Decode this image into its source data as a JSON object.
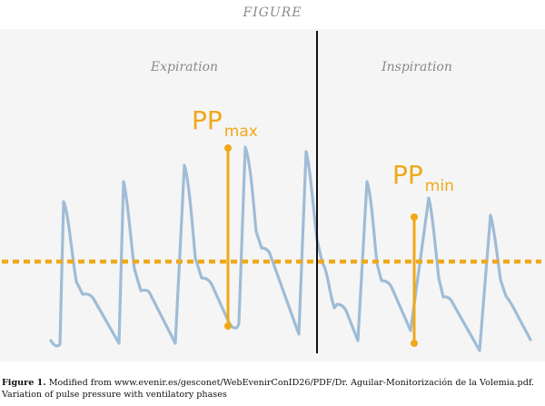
{
  "header": {
    "title": "FIGURE"
  },
  "phases": {
    "expiration": "Expiration",
    "inspiration": "Inspiration"
  },
  "annotations": {
    "pp_max": {
      "main": "PP",
      "sub": "max"
    },
    "pp_min": {
      "main": "PP",
      "sub": "min"
    }
  },
  "colors": {
    "waveform": "#9fbcd6",
    "annotation": "#f0a818",
    "divider": "#111111",
    "background": "#f5f5f5"
  },
  "caption": {
    "label": "Figure 1.",
    "line1": " Modified from www.evenir.es/gesconet/WebEvenirConID26/PDF/Dr. Aguilar-Monitorización de la Volemia.pdf.",
    "line2": "Variation of pulse pressure with ventilatory phases"
  }
}
